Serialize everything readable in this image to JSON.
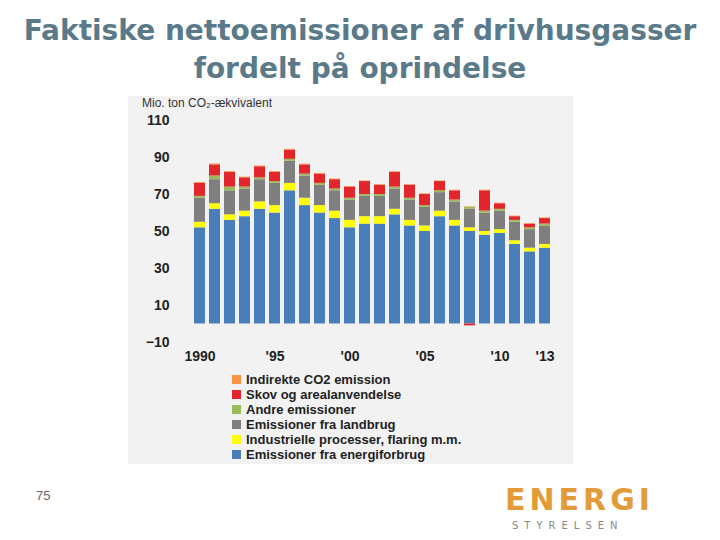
{
  "chart_data": {
    "type": "bar",
    "stacked": true,
    "title": "Faktiske nettoemissioner af drivhusgasser fordelt på oprindelse",
    "y_label": "Mio. ton CO₂-ækvivalent",
    "categories": [
      "1990",
      null,
      null,
      null,
      null,
      "'95",
      null,
      null,
      null,
      null,
      "'00",
      null,
      null,
      null,
      null,
      "'05",
      null,
      null,
      null,
      null,
      "'10",
      null,
      null,
      "'13"
    ],
    "ylim": [
      -10,
      110
    ],
    "yticks": [
      -10,
      10,
      30,
      50,
      70,
      90,
      110
    ],
    "grid": false,
    "series": [
      {
        "name": "Emissioner fra energiforbrug",
        "color": "#4a7ebb",
        "values": [
          52,
          62,
          56,
          58,
          62,
          60,
          72,
          64,
          60,
          57,
          52,
          54,
          54,
          59,
          53,
          50,
          58,
          53,
          50,
          48,
          49,
          43,
          39,
          41
        ]
      },
      {
        "name": "Industrielle processer, flaring m.m.",
        "color": "#ffff00",
        "values": [
          3,
          3,
          3,
          3,
          4,
          4,
          4,
          4,
          4,
          4,
          4,
          4,
          4,
          3,
          3,
          3,
          3,
          3,
          2,
          2,
          2,
          2,
          2,
          2
        ]
      },
      {
        "name": "Emissioner fra landbrug",
        "color": "#7f7f7f",
        "values": [
          13,
          13,
          13,
          12,
          12,
          12,
          12,
          12,
          11,
          11,
          11,
          11,
          11,
          11,
          11,
          10,
          10,
          10,
          10,
          10,
          10,
          10,
          10,
          10
        ]
      },
      {
        "name": "Andre emissioner",
        "color": "#9bbb59",
        "values": [
          1,
          2,
          2,
          1,
          1,
          1,
          1,
          1,
          1,
          1,
          1,
          1,
          1,
          1,
          1,
          1,
          1,
          1,
          1,
          1,
          1,
          1,
          1,
          1
        ]
      },
      {
        "name": "Skov og arealanvendelse",
        "color": "#e3262b",
        "values": [
          7,
          6,
          8,
          5,
          6,
          5,
          5,
          5,
          5,
          5,
          6,
          7,
          5,
          8,
          7,
          6,
          5,
          5,
          -1,
          11,
          3,
          2,
          2,
          3
        ]
      },
      {
        "name": "Indirekte CO2 emission",
        "color": "#f79646",
        "values": [
          0.5,
          0.5,
          0.4,
          0.4,
          0.4,
          0.4,
          0.4,
          0.4,
          0.4,
          0.4,
          0.3,
          0.3,
          0.3,
          0.3,
          0.3,
          0.3,
          0.3,
          0.3,
          0.3,
          0.3,
          0.3,
          0.3,
          0.3,
          0.3
        ]
      }
    ]
  },
  "page_number": "75",
  "logo": {
    "text": "ENERGI",
    "subtext": "STYRELSEN"
  }
}
